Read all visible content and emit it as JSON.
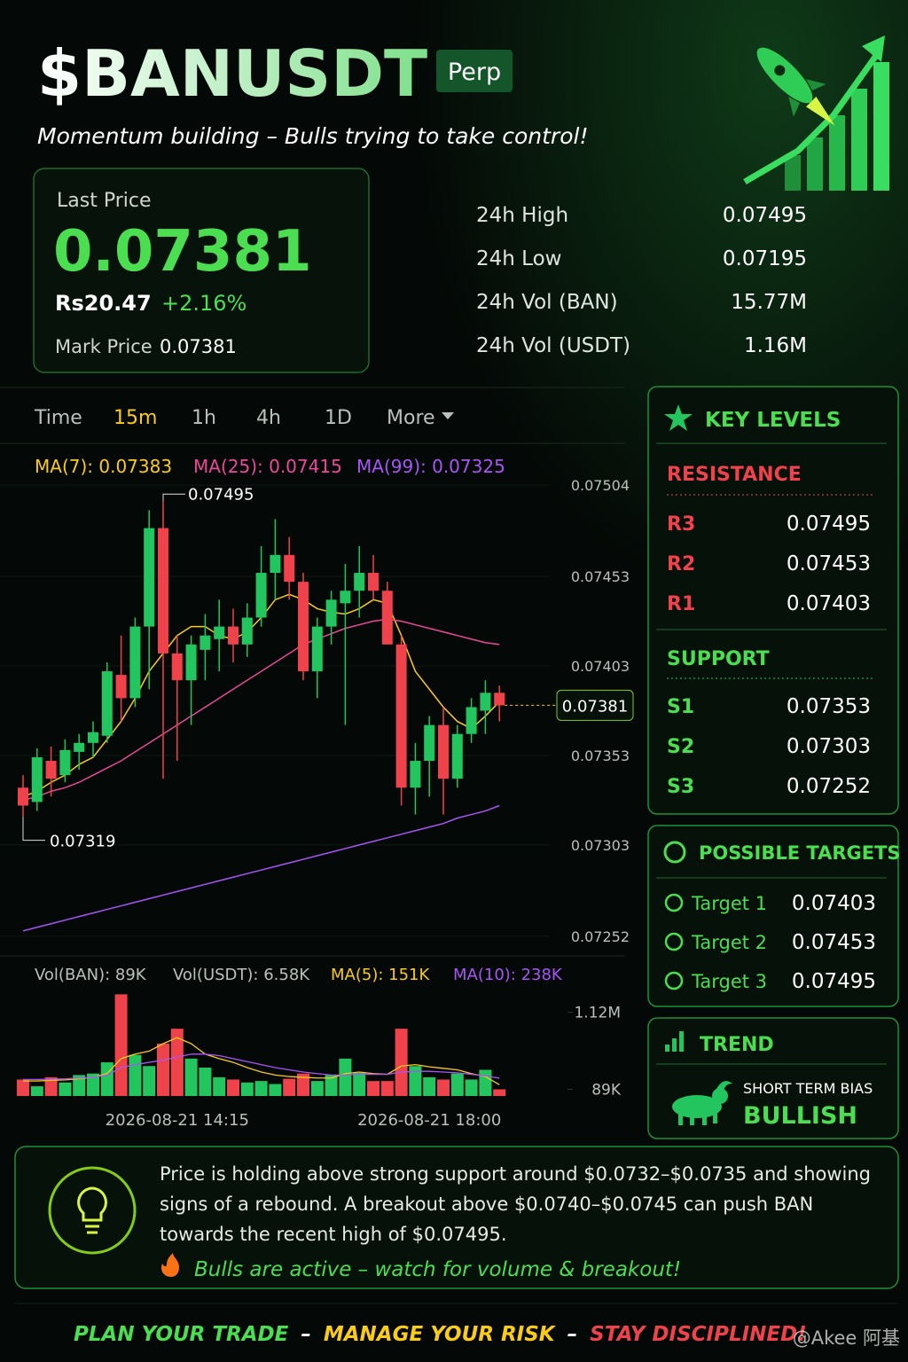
{
  "header": {
    "title": "$BANUSDT",
    "badge": "Perp",
    "subtitle": "Momentum building – Bulls trying to take control!"
  },
  "price_card": {
    "label": "Last Price",
    "price": "0.07381",
    "fiat": "Rs20.47",
    "change": "+2.16%",
    "mark_label": "Mark Price",
    "mark_price": "0.07381"
  },
  "stats": [
    {
      "label": "24h High",
      "value": "0.07495"
    },
    {
      "label": "24h Low",
      "value": "0.07195"
    },
    {
      "label": "24h Vol (BAN)",
      "value": "15.77M"
    },
    {
      "label": "24h Vol (USDT)",
      "value": "1.16M"
    }
  ],
  "timeframes": {
    "items": [
      "Time",
      "15m",
      "1h",
      "4h",
      "1D",
      "More"
    ],
    "active": 1
  },
  "chart_data": [
    {
      "type": "candlestick",
      "up_color": "#22c55e",
      "down_color": "#f0424b",
      "open": [
        0.07335,
        0.07327,
        0.0735,
        0.07342,
        0.07355,
        0.0736,
        0.07364,
        0.07398,
        0.07385,
        0.07425,
        0.0748,
        0.0741,
        0.07395,
        0.07412,
        0.07418,
        0.07425,
        0.07415,
        0.0743,
        0.07455,
        0.07465,
        0.0745,
        0.074,
        0.07425,
        0.07438,
        0.07445,
        0.07455,
        0.07445,
        0.07415,
        0.07335,
        0.0735,
        0.0737,
        0.0734,
        0.07365,
        0.07378,
        0.07388
      ],
      "high": [
        0.07342,
        0.07357,
        0.07358,
        0.07362,
        0.07365,
        0.07372,
        0.07405,
        0.0742,
        0.0743,
        0.0749,
        0.07495,
        0.0742,
        0.0742,
        0.07432,
        0.0744,
        0.07435,
        0.07438,
        0.0747,
        0.07485,
        0.07475,
        0.07455,
        0.0743,
        0.07445,
        0.0746,
        0.0747,
        0.07465,
        0.0745,
        0.0742,
        0.0736,
        0.07375,
        0.0738,
        0.0737,
        0.07385,
        0.07395,
        0.07392
      ],
      "low": [
        0.07319,
        0.07322,
        0.0733,
        0.07338,
        0.07345,
        0.07352,
        0.0736,
        0.07372,
        0.0738,
        0.0739,
        0.0734,
        0.0735,
        0.0737,
        0.07395,
        0.074,
        0.07405,
        0.07408,
        0.07425,
        0.0744,
        0.0744,
        0.07395,
        0.07385,
        0.07415,
        0.0737,
        0.0743,
        0.0744,
        0.07415,
        0.07325,
        0.0732,
        0.0733,
        0.0732,
        0.07335,
        0.0736,
        0.07365,
        0.07372
      ],
      "close": [
        0.07325,
        0.07352,
        0.0734,
        0.07356,
        0.0736,
        0.07366,
        0.074,
        0.07385,
        0.07425,
        0.0748,
        0.0741,
        0.07395,
        0.07415,
        0.0742,
        0.07425,
        0.07415,
        0.0743,
        0.07455,
        0.07465,
        0.0745,
        0.074,
        0.07425,
        0.0744,
        0.07445,
        0.07455,
        0.07445,
        0.07415,
        0.07335,
        0.0735,
        0.0737,
        0.0734,
        0.07365,
        0.0738,
        0.07388,
        0.07381
      ],
      "series": [
        {
          "name": "MA(7): 0.07383",
          "color": "#facc15",
          "values": [
            0.0733,
            0.07333,
            0.07338,
            0.07342,
            0.07348,
            0.07352,
            0.07362,
            0.07372,
            0.07385,
            0.074,
            0.0741,
            0.0742,
            0.07425,
            0.07425,
            0.0742,
            0.07418,
            0.07422,
            0.0743,
            0.0744,
            0.07443,
            0.0744,
            0.07435,
            0.07433,
            0.07432,
            0.07435,
            0.0744,
            0.07438,
            0.0742,
            0.074,
            0.0739,
            0.0738,
            0.07372,
            0.07368,
            0.07375,
            0.07383
          ]
        },
        {
          "name": "MA(25): 0.07415",
          "color": "#ec4899",
          "values": [
            0.07328,
            0.0733,
            0.07333,
            0.07335,
            0.07338,
            0.07342,
            0.07346,
            0.0735,
            0.07355,
            0.0736,
            0.07365,
            0.0737,
            0.07375,
            0.0738,
            0.07385,
            0.0739,
            0.07395,
            0.074,
            0.07405,
            0.0741,
            0.07415,
            0.07418,
            0.07421,
            0.07424,
            0.07426,
            0.07428,
            0.07429,
            0.07428,
            0.07426,
            0.07424,
            0.07422,
            0.0742,
            0.07418,
            0.07416,
            0.07415
          ]
        },
        {
          "name": "MA(99): 0.07325",
          "color": "#a855f7",
          "values": [
            0.07255,
            0.07257,
            0.07259,
            0.07261,
            0.07263,
            0.07265,
            0.07267,
            0.07269,
            0.07271,
            0.07273,
            0.07275,
            0.07277,
            0.07279,
            0.07281,
            0.07283,
            0.07285,
            0.07287,
            0.07289,
            0.07291,
            0.07293,
            0.07295,
            0.07297,
            0.07299,
            0.07301,
            0.07303,
            0.07305,
            0.07307,
            0.07309,
            0.07311,
            0.07313,
            0.07315,
            0.07318,
            0.0732,
            0.07322,
            0.07325
          ]
        }
      ],
      "ylim": [
        0.07245,
        0.0751
      ],
      "yticks": [
        0.07504,
        0.07453,
        0.07403,
        0.07353,
        0.07303,
        0.07252
      ],
      "high_label": 0.07495,
      "low_label": 0.07319,
      "last_price": 0.07381
    },
    {
      "type": "bar",
      "legend": [
        "Vol(BAN): 89K",
        "Vol(USDT): 6.58K"
      ],
      "categories": [
        null,
        null,
        null,
        null,
        null,
        null,
        null,
        null,
        null,
        null,
        null,
        "2026-08-21 14:15",
        null,
        null,
        null,
        null,
        null,
        null,
        null,
        null,
        null,
        null,
        null,
        null,
        null,
        null,
        null,
        null,
        null,
        "2026-08-21 18:00",
        null,
        null,
        null,
        null,
        null
      ],
      "values": [
        220000,
        130000,
        250000,
        180000,
        280000,
        300000,
        450000,
        1360000,
        550000,
        400000,
        700000,
        900000,
        500000,
        380000,
        250000,
        220000,
        180000,
        200000,
        160000,
        230000,
        300000,
        200000,
        280000,
        500000,
        310000,
        200000,
        200000,
        900000,
        400000,
        250000,
        220000,
        300000,
        220000,
        350000,
        89000
      ],
      "series": [
        {
          "name": "MA(5): 151K",
          "color": "#facc15",
          "values": [
            200000,
            200000,
            210000,
            215000,
            230000,
            250000,
            300000,
            500000,
            560000,
            600000,
            700000,
            780000,
            700000,
            560000,
            500000,
            450000,
            380000,
            320000,
            280000,
            260000,
            250000,
            240000,
            240000,
            300000,
            320000,
            300000,
            290000,
            400000,
            420000,
            390000,
            370000,
            350000,
            300000,
            260000,
            151000
          ]
        },
        {
          "name": "MA(10): 238K",
          "color": "#a855f7",
          "values": [
            220000,
            220000,
            225000,
            230000,
            240000,
            250000,
            280000,
            380000,
            420000,
            450000,
            480000,
            520000,
            560000,
            560000,
            540000,
            500000,
            460000,
            420000,
            380000,
            350000,
            320000,
            300000,
            280000,
            280000,
            290000,
            290000,
            290000,
            320000,
            330000,
            330000,
            320000,
            310000,
            290000,
            270000,
            238000
          ]
        }
      ],
      "ylim": [
        0,
        1400000
      ],
      "yticks": [
        {
          "value": 1120000,
          "label": "1.12M"
        },
        {
          "value": 89000,
          "label": "89K"
        }
      ]
    }
  ],
  "key_levels": {
    "title": "KEY LEVELS",
    "resistance": {
      "title": "RESISTANCE",
      "levels": [
        {
          "name": "R3",
          "value": "0.07495"
        },
        {
          "name": "R2",
          "value": "0.07453"
        },
        {
          "name": "R1",
          "value": "0.07403"
        }
      ]
    },
    "support": {
      "title": "SUPPORT",
      "levels": [
        {
          "name": "S1",
          "value": "0.07353"
        },
        {
          "name": "S2",
          "value": "0.07303"
        },
        {
          "name": "S3",
          "value": "0.07252"
        }
      ]
    }
  },
  "targets": {
    "title": "POSSIBLE TARGETS",
    "items": [
      {
        "name": "Target 1",
        "value": "0.07403"
      },
      {
        "name": "Target 2",
        "value": "0.07453"
      },
      {
        "name": "Target 3",
        "value": "0.07495"
      }
    ]
  },
  "trend": {
    "title": "TREND",
    "label": "SHORT TERM BIAS",
    "value": "BULLISH"
  },
  "note": {
    "lines": [
      "Price is holding above strong support around $0.0732–$0.0735 and showing",
      "signs of a rebound. A breakout above $0.0740–$0.0745 can push BAN",
      "towards the recent high of $0.07495."
    ],
    "callout": "Bulls are active – watch for volume & breakout!"
  },
  "footer": {
    "parts": [
      "PLAN YOUR TRADE",
      "–",
      "MANAGE YOUR RISK",
      "–",
      "STAY DISCIPLINED!"
    ]
  },
  "watermark": "@Akee 阿基"
}
